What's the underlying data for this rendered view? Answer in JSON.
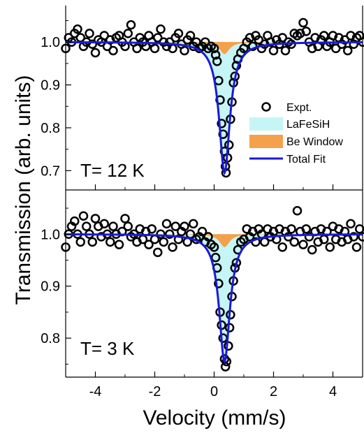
{
  "chart_data": [
    {
      "type": "scatter",
      "panel": "top",
      "annotation": "T= 12 K",
      "xlim": [
        -5,
        5
      ],
      "ylim": [
        0.655,
        1.085
      ],
      "yticks": [
        "0.7",
        "0.8",
        "0.9",
        "1.0"
      ],
      "ytick_values": [
        0.7,
        0.8,
        0.9,
        1.0
      ],
      "xticks": [
        -4,
        -2,
        0,
        2,
        4
      ],
      "minor_xticks": [
        -5,
        -3,
        -1,
        1,
        3,
        5
      ],
      "components": [
        {
          "name": "LaFeSiH",
          "center": 0.35,
          "hwhm": 0.22,
          "depth": 0.29,
          "color": "#c6f5f5"
        },
        {
          "name": "Be Window",
          "center": 0.35,
          "hwhm": 0.2,
          "depth": 0.028,
          "color": "#f5a04a"
        }
      ],
      "total_fit": {
        "name": "Total Fit",
        "center": 0.35,
        "hwhm": 0.22,
        "depth": 0.305,
        "color": "#1a1ad6"
      },
      "points": [
        [
          -5.0,
          0.985
        ],
        [
          -4.9,
          1.01
        ],
        [
          -4.8,
          1.0
        ],
        [
          -4.7,
          1.02
        ],
        [
          -4.6,
          1.03
        ],
        [
          -4.5,
          1.01
        ],
        [
          -4.4,
          0.99
        ],
        [
          -4.3,
          1.0
        ],
        [
          -4.2,
          1.02
        ],
        [
          -4.1,
          0.995
        ],
        [
          -4.0,
          0.975
        ],
        [
          -3.9,
          1.005
        ],
        [
          -3.8,
          1.0
        ],
        [
          -3.7,
          1.015
        ],
        [
          -3.6,
          0.99
        ],
        [
          -3.5,
          1.005
        ],
        [
          -3.4,
          0.98
        ],
        [
          -3.3,
          1.01
        ],
        [
          -3.2,
          1.015
        ],
        [
          -3.1,
          1.0
        ],
        [
          -3.0,
          0.99
        ],
        [
          -2.9,
          1.02
        ],
        [
          -2.8,
          1.04
        ],
        [
          -2.7,
          1.0
        ],
        [
          -2.6,
          0.985
        ],
        [
          -2.5,
          1.01
        ],
        [
          -2.4,
          1.0
        ],
        [
          -2.3,
          0.99
        ],
        [
          -2.2,
          1.015
        ],
        [
          -2.1,
          1.0
        ],
        [
          -2.0,
          0.985
        ],
        [
          -1.9,
          1.01
        ],
        [
          -1.8,
          1.03
        ],
        [
          -1.7,
          1.0
        ],
        [
          -1.6,
          0.99
        ],
        [
          -1.5,
          1.0
        ],
        [
          -1.4,
          0.985
        ],
        [
          -1.3,
          1.01
        ],
        [
          -1.2,
          1.02
        ],
        [
          -1.1,
          0.995
        ],
        [
          -1.0,
          0.98
        ],
        [
          -0.9,
          1.005
        ],
        [
          -0.8,
          1.015
        ],
        [
          -0.7,
          0.99
        ],
        [
          -0.6,
          1.0
        ],
        [
          -0.5,
          0.985
        ],
        [
          -0.4,
          0.99
        ],
        [
          -0.3,
          1.0
        ],
        [
          -0.2,
          0.985
        ],
        [
          -0.1,
          0.99
        ],
        [
          0.0,
          0.985
        ],
        [
          0.05,
          0.97
        ],
        [
          0.1,
          0.955
        ],
        [
          0.15,
          0.91
        ],
        [
          0.2,
          0.865
        ],
        [
          0.25,
          0.81
        ],
        [
          0.3,
          0.785
        ],
        [
          0.35,
          0.745
        ],
        [
          0.38,
          0.71
        ],
        [
          0.4,
          0.695
        ],
        [
          0.45,
          0.73
        ],
        [
          0.5,
          0.76
        ],
        [
          0.55,
          0.82
        ],
        [
          0.6,
          0.86
        ],
        [
          0.65,
          0.905
        ],
        [
          0.7,
          0.92
        ],
        [
          0.75,
          0.945
        ],
        [
          0.8,
          0.96
        ],
        [
          0.9,
          0.975
        ],
        [
          1.0,
          0.985
        ],
        [
          1.1,
          1.0
        ],
        [
          1.2,
          1.01
        ],
        [
          1.3,
          0.99
        ],
        [
          1.4,
          1.015
        ],
        [
          1.5,
          1.005
        ],
        [
          1.6,
          0.985
        ],
        [
          1.7,
          0.995
        ],
        [
          1.8,
          1.015
        ],
        [
          1.9,
          1.0
        ],
        [
          2.0,
          0.98
        ],
        [
          2.1,
          1.005
        ],
        [
          2.2,
          0.995
        ],
        [
          2.3,
          1.01
        ],
        [
          2.4,
          0.98
        ],
        [
          2.5,
          1.0
        ],
        [
          2.6,
          0.995
        ],
        [
          2.7,
          1.02
        ],
        [
          2.8,
          1.015
        ],
        [
          2.9,
          1.02
        ],
        [
          3.0,
          1.045
        ],
        [
          3.1,
          1.025
        ],
        [
          3.2,
          1.0
        ],
        [
          3.3,
          0.985
        ],
        [
          3.4,
          1.01
        ],
        [
          3.5,
          0.99
        ],
        [
          3.6,
          1.005
        ],
        [
          3.7,
          1.015
        ],
        [
          3.8,
          0.99
        ],
        [
          3.9,
          1.0
        ],
        [
          4.0,
          1.015
        ],
        [
          4.1,
          0.985
        ],
        [
          4.2,
          1.01
        ],
        [
          4.3,
          0.995
        ],
        [
          4.4,
          1.005
        ],
        [
          4.5,
          0.98
        ],
        [
          4.6,
          1.015
        ],
        [
          4.7,
          0.995
        ],
        [
          4.8,
          1.01
        ],
        [
          4.9,
          1.015
        ],
        [
          5.0,
          1.0
        ]
      ]
    },
    {
      "type": "scatter",
      "panel": "bottom",
      "annotation": "T= 3 K",
      "xlim": [
        -5,
        5
      ],
      "ylim": [
        0.725,
        1.085
      ],
      "yticks": [
        "0.8",
        "0.9",
        "1.0"
      ],
      "ytick_values": [
        0.8,
        0.9,
        1.0
      ],
      "xticks": [
        -4,
        -2,
        0,
        2,
        4
      ],
      "minor_xticks": [
        -5,
        -3,
        -1,
        1,
        3,
        5
      ],
      "components": [
        {
          "name": "LaFeSiH",
          "center": 0.35,
          "hwhm": 0.22,
          "depth": 0.235,
          "color": "#c6f5f5"
        },
        {
          "name": "Be Window",
          "center": 0.35,
          "hwhm": 0.2,
          "depth": 0.025,
          "color": "#f5a04a"
        }
      ],
      "total_fit": {
        "name": "Total Fit",
        "center": 0.35,
        "hwhm": 0.22,
        "depth": 0.245,
        "color": "#1a1ad6"
      },
      "points": [
        [
          -5.0,
          0.975
        ],
        [
          -4.9,
          1.0
        ],
        [
          -4.8,
          1.015
        ],
        [
          -4.7,
          1.025
        ],
        [
          -4.6,
          1.0
        ],
        [
          -4.5,
          0.985
        ],
        [
          -4.4,
          1.035
        ],
        [
          -4.3,
          1.015
        ],
        [
          -4.2,
          1.0
        ],
        [
          -4.1,
          0.985
        ],
        [
          -4.0,
          1.03
        ],
        [
          -3.9,
          1.015
        ],
        [
          -3.8,
          0.995
        ],
        [
          -3.7,
          1.02
        ],
        [
          -3.6,
          1.0
        ],
        [
          -3.5,
          0.985
        ],
        [
          -3.4,
          1.015
        ],
        [
          -3.3,
          1.0
        ],
        [
          -3.2,
          0.98
        ],
        [
          -3.1,
          1.005
        ],
        [
          -3.0,
          1.03
        ],
        [
          -2.9,
          1.015
        ],
        [
          -2.8,
          0.995
        ],
        [
          -2.7,
          1.0
        ],
        [
          -2.6,
          0.985
        ],
        [
          -2.5,
          1.01
        ],
        [
          -2.4,
          0.99
        ],
        [
          -2.3,
          1.005
        ],
        [
          -2.2,
          0.98
        ],
        [
          -2.1,
          1.01
        ],
        [
          -2.0,
          0.99
        ],
        [
          -1.9,
          0.965
        ],
        [
          -1.8,
          1.0
        ],
        [
          -1.7,
          0.985
        ],
        [
          -1.6,
          1.02
        ],
        [
          -1.5,
          1.0
        ],
        [
          -1.4,
          0.975
        ],
        [
          -1.3,
          1.015
        ],
        [
          -1.2,
          0.99
        ],
        [
          -1.1,
          1.005
        ],
        [
          -1.0,
          1.015
        ],
        [
          -0.9,
          0.985
        ],
        [
          -0.8,
          1.0
        ],
        [
          -0.7,
          1.02
        ],
        [
          -0.6,
          0.99
        ],
        [
          -0.5,
          0.995
        ],
        [
          -0.4,
          1.005
        ],
        [
          -0.3,
          0.985
        ],
        [
          -0.2,
          0.995
        ],
        [
          -0.1,
          0.98
        ],
        [
          0.0,
          0.975
        ],
        [
          0.05,
          0.955
        ],
        [
          0.1,
          0.935
        ],
        [
          0.15,
          0.905
        ],
        [
          0.2,
          0.85
        ],
        [
          0.25,
          0.825
        ],
        [
          0.3,
          0.8
        ],
        [
          0.35,
          0.76
        ],
        [
          0.38,
          0.745
        ],
        [
          0.42,
          0.755
        ],
        [
          0.48,
          0.785
        ],
        [
          0.52,
          0.82
        ],
        [
          0.55,
          0.845
        ],
        [
          0.6,
          0.88
        ],
        [
          0.65,
          0.91
        ],
        [
          0.7,
          0.935
        ],
        [
          0.75,
          0.945
        ],
        [
          0.8,
          0.97
        ],
        [
          0.9,
          0.985
        ],
        [
          1.0,
          0.99
        ],
        [
          1.1,
          1.01
        ],
        [
          1.2,
          0.995
        ],
        [
          1.3,
          1.005
        ],
        [
          1.4,
          0.985
        ],
        [
          1.5,
          1.01
        ],
        [
          1.6,
          1.0
        ],
        [
          1.7,
          0.985
        ],
        [
          1.8,
          1.01
        ],
        [
          1.9,
          0.995
        ],
        [
          2.0,
          1.005
        ],
        [
          2.1,
          0.99
        ],
        [
          2.2,
          1.01
        ],
        [
          2.3,
          0.975
        ],
        [
          2.4,
          1.005
        ],
        [
          2.5,
          0.995
        ],
        [
          2.6,
          1.01
        ],
        [
          2.7,
          0.985
        ],
        [
          2.8,
          1.045
        ],
        [
          2.9,
          1.005
        ],
        [
          3.0,
          0.98
        ],
        [
          3.1,
          1.01
        ],
        [
          3.2,
          0.995
        ],
        [
          3.3,
          0.97
        ],
        [
          3.4,
          1.005
        ],
        [
          3.5,
          0.985
        ],
        [
          3.6,
          1.01
        ],
        [
          3.7,
          0.99
        ],
        [
          3.8,
          1.005
        ],
        [
          3.9,
          0.975
        ],
        [
          4.0,
          1.015
        ],
        [
          4.1,
          0.99
        ],
        [
          4.2,
          1.01
        ],
        [
          4.3,
          0.985
        ],
        [
          4.4,
          1.005
        ],
        [
          4.5,
          0.99
        ],
        [
          4.6,
          1.02
        ],
        [
          4.7,
          0.995
        ],
        [
          4.8,
          0.975
        ],
        [
          4.9,
          1.01
        ],
        [
          5.0,
          0.995
        ]
      ]
    }
  ],
  "legend": {
    "placement": "upper right of top panel",
    "entries": [
      {
        "label": "Expt.",
        "kind": "circle"
      },
      {
        "label": "LaFeSiH",
        "kind": "fill",
        "color": "#c6f5f5"
      },
      {
        "label": "Be Window",
        "kind": "fill",
        "color": "#f5a04a"
      },
      {
        "label": "Total Fit",
        "kind": "line",
        "color": "#1a1ad6"
      }
    ]
  },
  "axes": {
    "xlabel": "Velocity (mm/s)",
    "ylabel": "Transmission (arb. units)",
    "xtick_labels": [
      "-4",
      "-2",
      "0",
      "2",
      "4"
    ]
  }
}
